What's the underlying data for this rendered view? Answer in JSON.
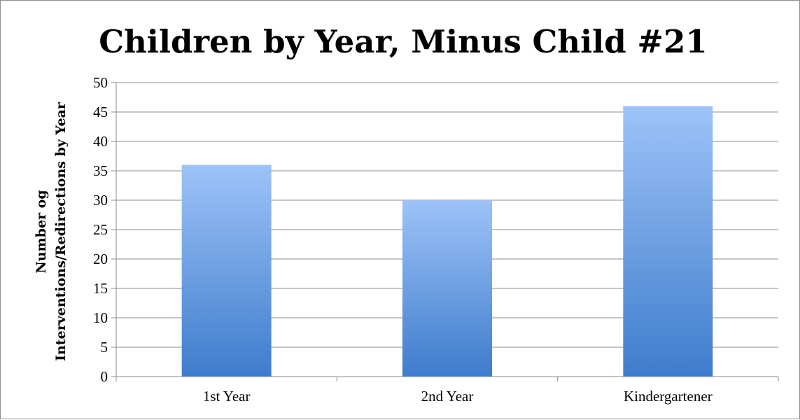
{
  "chart_data": {
    "type": "bar",
    "title": "Children by Year, Minus Child #21",
    "ylabel_lines": [
      "Number og",
      "Interventions/Redirections by Year"
    ],
    "xlabel": "",
    "categories": [
      "1st Year",
      "2nd Year",
      "Kindergartener"
    ],
    "values": [
      36,
      30,
      46
    ],
    "ylim": [
      0,
      50
    ],
    "yticks": [
      0,
      5,
      10,
      15,
      20,
      25,
      30,
      35,
      40,
      45,
      50
    ],
    "grid": true,
    "legend": "none",
    "colors": {
      "bar_top": "#9dc3f8",
      "bar_bottom": "#3f7ccc",
      "grid": "#8c8c8c",
      "axis": "#8c8c8c"
    }
  }
}
